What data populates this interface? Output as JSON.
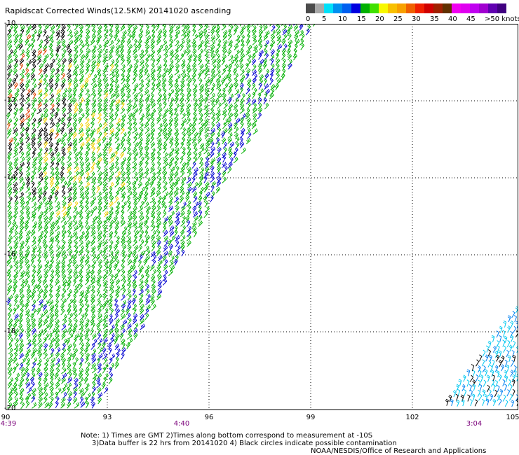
{
  "title": "Rapidscat Corrected Winds(12.5KM) 20141020 ascending",
  "scale": {
    "labels": [
      "0",
      "5",
      "10",
      "15",
      "20",
      "25",
      "30",
      "35",
      "40",
      "45",
      ">50 knots"
    ],
    "colors": [
      "#4b4b4b",
      "#a8a8a8",
      "#00d8f8",
      "#00a0f0",
      "#0000e0",
      "#00c000",
      "#40e000",
      "#f8f800",
      "#f8b000",
      "#f06000",
      "#e00000",
      "#a02000",
      "#603000",
      "#f000f0",
      "#a000c0",
      "#500090"
    ]
  },
  "y_labels": [
    "-10",
    "-12",
    "-14",
    "-16",
    "-18",
    "-20"
  ],
  "x_labels": [
    "90",
    "93",
    "96",
    "99",
    "102",
    "105"
  ],
  "time_labels": [
    "4:39",
    "4:40",
    "3:04"
  ],
  "note": "Note: 1) Times are GMT 2)Times along bottom correspond to measurement at -10S\n     3)Data buffer is 22 hrs from 20141020 4) Black circles indicate possible contamination",
  "credit": "NOAA/NESDIS/Office of Research and Applications"
}
